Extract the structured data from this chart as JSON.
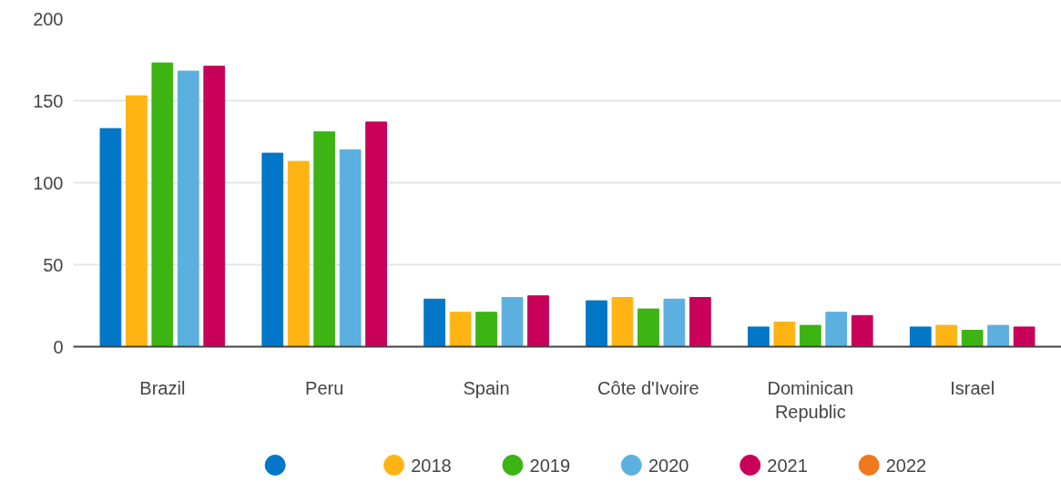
{
  "chart_data": {
    "type": "bar",
    "categories": [
      "Brazil",
      "Peru",
      "Spain",
      "Côte d'Ivoire",
      "Dominican Republic",
      "Israel"
    ],
    "series": [
      {
        "color": "#0277c8",
        "values": [
          133,
          118,
          29,
          28,
          12,
          12
        ]
      },
      {
        "name": "2018",
        "color": "#ffb414",
        "values": [
          153,
          113,
          21,
          30,
          15,
          13
        ]
      },
      {
        "name": "2019",
        "color": "#3cb414",
        "values": [
          173,
          131,
          21,
          23,
          13,
          10
        ]
      },
      {
        "name": "2020",
        "color": "#5bb0e0",
        "values": [
          168,
          120,
          30,
          29,
          21,
          13
        ]
      },
      {
        "name": "2021",
        "color": "#c8005a",
        "values": [
          171,
          137,
          31,
          30,
          19,
          12
        ]
      },
      {
        "name": "2022",
        "color": "#f0781e",
        "values": [
          null,
          null,
          null,
          null,
          null,
          null
        ]
      }
    ],
    "ylim": [
      0,
      200
    ],
    "yticks": [
      0,
      50,
      100,
      150,
      200
    ],
    "grid": "y",
    "legend": "bottom"
  }
}
